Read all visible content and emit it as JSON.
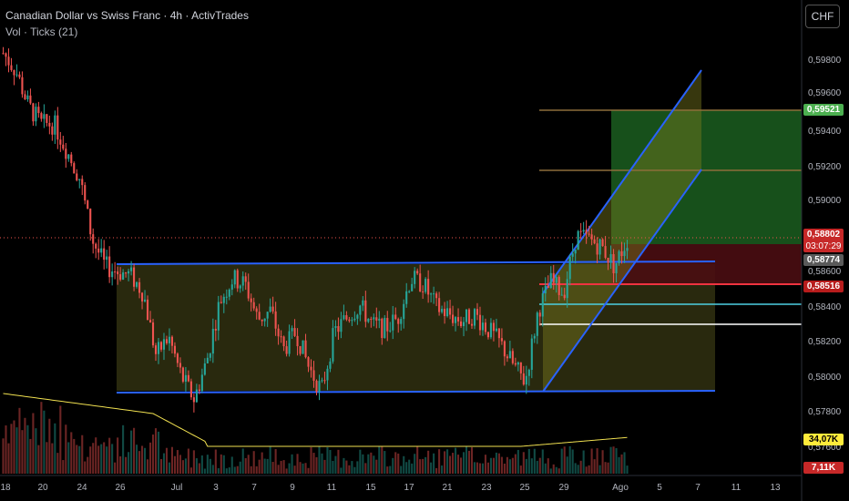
{
  "header": {
    "title": "Canadian Dollar vs Swiss Franc · 4h · ActivTrades",
    "indicator": "Vol · Ticks (21)"
  },
  "currency_button": "CHF",
  "price_axis": {
    "labels": [
      "0,59800",
      "0,59600",
      "0,59400",
      "0,59200",
      "0,59000",
      "0,58600",
      "0,58400",
      "0,58200",
      "0,58000",
      "0,57800",
      "0,57600"
    ]
  },
  "price_tags": {
    "target": "0,59521",
    "last_price": "0,58802",
    "countdown": "03:07:29",
    "mid": "0,58774",
    "stop": "0,58516",
    "volume_ma": "34,07K",
    "volume_last": "7,11K"
  },
  "time_axis": {
    "labels": [
      "18",
      "20",
      "24",
      "26",
      "Jul",
      "3",
      "7",
      "9",
      "11",
      "15",
      "17",
      "21",
      "23",
      "25",
      "29",
      "Ago",
      "5",
      "7",
      "11",
      "13"
    ]
  },
  "colors": {
    "background": "#000000",
    "up_candle": "#26a69a",
    "down_candle": "#ef5350",
    "range_box": "#4a4a1a",
    "channel_line": "#2962ff",
    "target_zone": "#1b5e20",
    "stop_zone": "#4a0d12",
    "volume_ma": "#f0e050",
    "target_tag": "#4caf50",
    "last_tag": "#c62828",
    "stop_tag": "#b71c1c",
    "volume_tag": "#ffeb3b"
  },
  "chart_data": {
    "type": "candlestick",
    "title": "Canadian Dollar vs Swiss Franc · 4h · ActivTrades",
    "ylim": [
      0.5765,
      0.5992
    ],
    "y_ticks": [
      0.598,
      0.596,
      0.594,
      0.592,
      0.59,
      0.586,
      0.584,
      0.582,
      0.58,
      0.578,
      0.576
    ],
    "x_ticks": [
      "18",
      "20",
      "24",
      "26",
      "Jul",
      "3",
      "7",
      "9",
      "11",
      "15",
      "17",
      "21",
      "23",
      "25",
      "29",
      "Ago",
      "5",
      "7",
      "11",
      "13"
    ],
    "range_box": {
      "top": 0.5866,
      "bottom": 0.5792
    },
    "channel": {
      "lower_start": 0.5792,
      "lower_end": 0.5918,
      "upper_start": 0.5849,
      "upper_end": 0.5974
    },
    "trade": {
      "target": 0.59521,
      "target2": 0.5918,
      "entry": 0.58774,
      "stop": 0.58516,
      "support_1": 0.5841,
      "support_2": 0.5829
    },
    "last_price": 0.58802,
    "volume_ma_last": "34,07K",
    "volume_last": "7,11K",
    "price_path": [
      0.5985,
      0.5975,
      0.5955,
      0.5945,
      0.5945,
      0.593,
      0.5915,
      0.588,
      0.5865,
      0.5862,
      0.586,
      0.585,
      0.5815,
      0.5825,
      0.5803,
      0.579,
      0.5812,
      0.5845,
      0.5858,
      0.5855,
      0.5835,
      0.584,
      0.5818,
      0.5828,
      0.5808,
      0.5795,
      0.5828,
      0.5836,
      0.5843,
      0.5832,
      0.583,
      0.5836,
      0.5858,
      0.5855,
      0.5842,
      0.5838,
      0.5834,
      0.5838,
      0.583,
      0.5822,
      0.581,
      0.58,
      0.584,
      0.5856,
      0.585,
      0.5882,
      0.588,
      0.5876,
      0.5865,
      0.588
    ]
  }
}
